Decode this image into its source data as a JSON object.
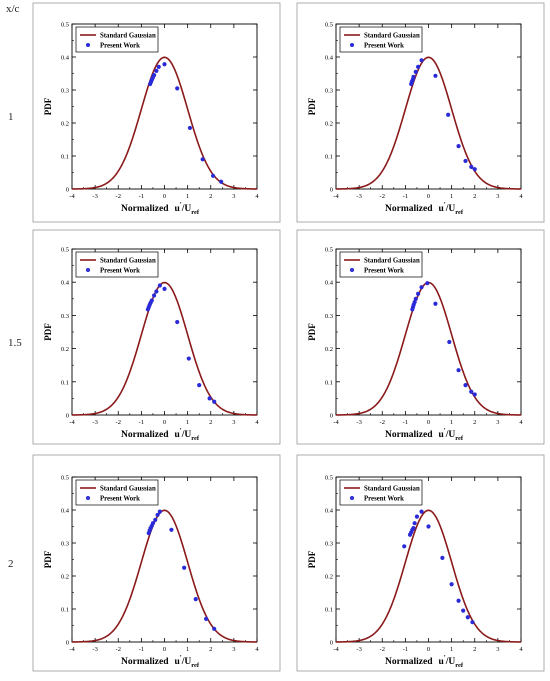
{
  "header_label": "x/c",
  "row_labels": [
    "1",
    "1.5",
    "2"
  ],
  "shared_axes": {
    "xlabel_main": "Normalized",
    "xlabel_u": "u",
    "xlabel_prime": "'",
    "xlabel_slash": "/U",
    "xlabel_sub": "ref",
    "ylabel": "PDF",
    "x_ticks": [
      "-4",
      "-3",
      "-2",
      "-1",
      "0",
      "1",
      "2",
      "3",
      "4"
    ],
    "y_ticks": [
      "0",
      "0.1",
      "0.2",
      "0.3",
      "0.4",
      "0.5"
    ],
    "xlim": [
      -4,
      4
    ],
    "ylim": [
      0,
      0.5
    ]
  },
  "legend": {
    "gaussian_label": "Standard Gaussian",
    "points_label": "Present Work",
    "gaussian_color": "#8b1a1a",
    "points_color": "#2a2ad8"
  },
  "chart_data": [
    {
      "type": "scatter",
      "row": "1",
      "column": 1,
      "series": [
        {
          "name": "Standard Gaussian",
          "kind": "line",
          "mean": 0,
          "std": 1
        },
        {
          "name": "Present Work",
          "kind": "points",
          "x": [
            -0.62,
            -0.58,
            -0.54,
            -0.5,
            -0.45,
            -0.35,
            -0.25,
            0.0,
            0.55,
            1.1,
            1.65,
            2.1,
            2.45
          ],
          "y": [
            0.318,
            0.325,
            0.332,
            0.338,
            0.345,
            0.358,
            0.37,
            0.378,
            0.305,
            0.185,
            0.09,
            0.04,
            0.022
          ]
        }
      ]
    },
    {
      "type": "scatter",
      "row": "1",
      "column": 2,
      "series": [
        {
          "name": "Standard Gaussian",
          "kind": "line",
          "mean": 0,
          "std": 1
        },
        {
          "name": "Present Work",
          "kind": "points",
          "x": [
            -0.75,
            -0.72,
            -0.68,
            -0.65,
            -0.55,
            -0.45,
            -0.3,
            0.3,
            0.85,
            1.3,
            1.6,
            1.85,
            2.0
          ],
          "y": [
            0.318,
            0.325,
            0.332,
            0.34,
            0.355,
            0.37,
            0.39,
            0.343,
            0.225,
            0.13,
            0.085,
            0.067,
            0.06
          ]
        }
      ]
    },
    {
      "type": "scatter",
      "row": "1.5",
      "column": 1,
      "series": [
        {
          "name": "Standard Gaussian",
          "kind": "line",
          "mean": 0,
          "std": 1
        },
        {
          "name": "Present Work",
          "kind": "points",
          "x": [
            -0.72,
            -0.68,
            -0.64,
            -0.6,
            -0.55,
            -0.45,
            -0.35,
            -0.2,
            0.0,
            0.55,
            1.05,
            1.5,
            1.95,
            2.15
          ],
          "y": [
            0.318,
            0.325,
            0.332,
            0.338,
            0.345,
            0.36,
            0.372,
            0.39,
            0.38,
            0.28,
            0.17,
            0.09,
            0.05,
            0.04
          ]
        }
      ]
    },
    {
      "type": "scatter",
      "row": "1.5",
      "column": 2,
      "series": [
        {
          "name": "Standard Gaussian",
          "kind": "line",
          "mean": 0,
          "std": 1
        },
        {
          "name": "Present Work",
          "kind": "points",
          "x": [
            -0.7,
            -0.67,
            -0.64,
            -0.6,
            -0.55,
            -0.45,
            -0.3,
            -0.05,
            0.3,
            0.9,
            1.3,
            1.6,
            1.85,
            2.0
          ],
          "y": [
            0.318,
            0.325,
            0.332,
            0.34,
            0.35,
            0.365,
            0.385,
            0.397,
            0.335,
            0.22,
            0.135,
            0.09,
            0.07,
            0.062
          ]
        }
      ]
    },
    {
      "type": "scatter",
      "row": "2",
      "column": 1,
      "series": [
        {
          "name": "Standard Gaussian",
          "kind": "line",
          "mean": 0,
          "std": 1
        },
        {
          "name": "Present Work",
          "kind": "points",
          "x": [
            -0.68,
            -0.64,
            -0.6,
            -0.55,
            -0.5,
            -0.4,
            -0.3,
            -0.2,
            0.3,
            0.85,
            1.35,
            1.8,
            2.15
          ],
          "y": [
            0.33,
            0.338,
            0.345,
            0.352,
            0.36,
            0.37,
            0.385,
            0.395,
            0.34,
            0.225,
            0.13,
            0.07,
            0.04
          ]
        }
      ]
    },
    {
      "type": "scatter",
      "row": "2",
      "column": 2,
      "series": [
        {
          "name": "Standard Gaussian",
          "kind": "line",
          "mean": 0,
          "std": 1
        },
        {
          "name": "Present Work",
          "kind": "points",
          "x": [
            -1.05,
            -0.8,
            -0.75,
            -0.7,
            -0.65,
            -0.6,
            -0.5,
            -0.3,
            0.0,
            0.6,
            1.0,
            1.3,
            1.5,
            1.7,
            1.9
          ],
          "y": [
            0.29,
            0.325,
            0.332,
            0.34,
            0.345,
            0.36,
            0.38,
            0.395,
            0.35,
            0.255,
            0.175,
            0.125,
            0.095,
            0.075,
            0.06
          ]
        }
      ]
    }
  ]
}
